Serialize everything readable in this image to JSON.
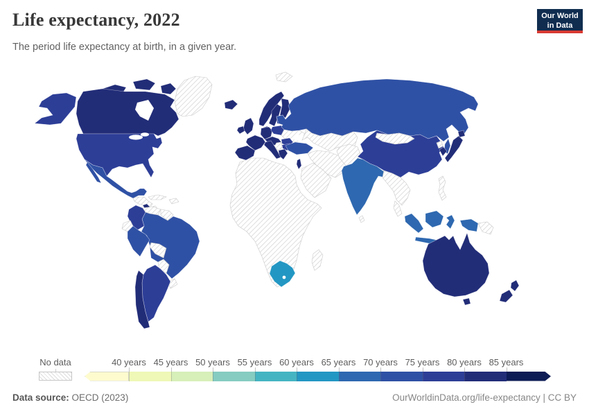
{
  "header": {
    "title": "Life expectancy, 2022",
    "subtitle": "The period life expectancy at birth, in a given year."
  },
  "logo": {
    "line1": "Our World",
    "line2": "in Data",
    "bg_color": "#102d50",
    "accent_color": "#d93a32"
  },
  "legend": {
    "no_data_label": "No data",
    "ticks": [
      "40 years",
      "45 years",
      "50 years",
      "55 years",
      "60 years",
      "65 years",
      "70 years",
      "75 years",
      "80 years",
      "85 years"
    ],
    "bucket_order": [
      "lt40",
      "40-45",
      "45-50",
      "50-55",
      "55-60",
      "60-65",
      "65-70",
      "70-75",
      "75-80",
      "80-85",
      "gt85"
    ],
    "hatch_line_color": "#d6d6d6"
  },
  "footer": {
    "source_label": "Data source:",
    "source_value": " OECD (2023)",
    "right_text": "OurWorldinData.org/life-expectancy | CC BY"
  },
  "chart_data": {
    "type": "choropleth_map",
    "title": "Life expectancy, 2022",
    "unit": "years",
    "scale_min": 40,
    "scale_max": 85,
    "bucket_size": 5,
    "palette": {
      "lt40": "#fefbce",
      "40-45": "#eff8b6",
      "45-50": "#d7efb9",
      "50-55": "#86ccc1",
      "55-60": "#45b4c2",
      "60-65": "#2397c3",
      "65-70": "#2e68b0",
      "70-75": "#2f51a5",
      "75-80": "#2d3e97",
      "80-85": "#222d78",
      "gt85": "#0d1c55",
      "no-data": "hatched"
    },
    "regions": {
      "Greenland": "no-data",
      "Canada": "80-85",
      "United States": "75-80",
      "Mexico": "70-75",
      "Central America": "no-data",
      "Costa Rica": "80-85",
      "Panama": "no-data",
      "Cuba": "no-data",
      "Hispaniola": "no-data",
      "Colombia": "75-80",
      "Venezuela": "no-data",
      "Guyanas": "no-data",
      "Ecuador": "no-data",
      "Peru": "70-75",
      "Brazil": "70-75",
      "Bolivia": "no-data",
      "Paraguay": "no-data",
      "Uruguay": "no-data",
      "Argentina": "75-80",
      "Chile": "80-85",
      "Africa": "no-data",
      "South Africa": "60-65",
      "Madagascar": "no-data",
      "Iceland": "80-85",
      "Norway": "80-85",
      "Sweden": "80-85",
      "Finland": "80-85",
      "Denmark": "80-85",
      "United Kingdom": "80-85",
      "Ireland": "80-85",
      "France": "80-85",
      "Spain": "80-85",
      "Germany": "80-85",
      "Central Europe": "80-85",
      "Italy": "80-85",
      "Poland": "75-80",
      "Baltic states": "75-80",
      "Belarus": "no-data",
      "Ukraine": "no-data",
      "Romania": "75-80",
      "Western Balkans": "no-data",
      "Bulgaria": "75-80",
      "Greece": "80-85",
      "Svalbard": "no-data",
      "Russia": "70-75",
      "Kazakhstan and Central Asia": "no-data",
      "Turkey": "70-75",
      "Middle East": "no-data",
      "Israel": "80-85",
      "Arabian Peninsula": "no-data",
      "Afghanistan and Pakistan": "no-data",
      "India": "65-70",
      "Sri Lanka": "no-data",
      "China": "75-80",
      "Mongolia": "no-data",
      "North Korea": "no-data",
      "South Korea": "80-85",
      "Japan": "80-85",
      "Southeast Asia": "no-data",
      "Malay Peninsula": "no-data",
      "Philippines": "no-data",
      "Indonesia": "65-70",
      "Papua New Guinea": "no-data",
      "Australia": "80-85",
      "New Zealand": "80-85"
    }
  }
}
